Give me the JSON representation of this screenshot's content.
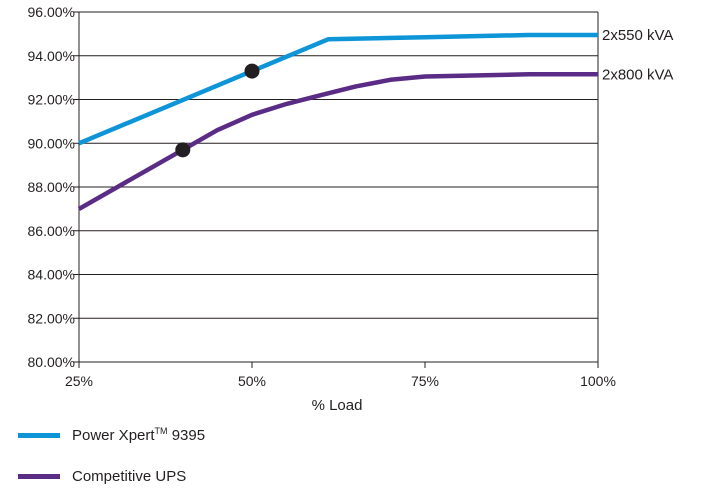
{
  "chart_data": {
    "type": "line",
    "xlabel": "% Load",
    "ylabel": "",
    "x_ticks": [
      "25%",
      "50%",
      "75%",
      "100%"
    ],
    "y_ticks": [
      "96.00%",
      "94.00%",
      "92.00%",
      "90.00%",
      "88.00%",
      "86.00%",
      "84.00%",
      "82.00%",
      "80.00%"
    ],
    "xlim": [
      25,
      100
    ],
    "ylim": [
      80,
      96
    ],
    "grid": "horizontal",
    "legend_position": "bottom-left",
    "series": [
      {
        "name": "Power Xpert 9395",
        "name_main": "Power Xpert",
        "name_tm": "TM",
        "name_suffix": " 9395",
        "color": "#0d95d8",
        "end_label": "2x550 kVA",
        "x": [
          25,
          50,
          61,
          75,
          90,
          100
        ],
        "y": [
          90.0,
          93.3,
          94.75,
          94.85,
          94.95,
          94.95
        ],
        "marker": {
          "x": 50,
          "y": 93.3
        }
      },
      {
        "name": "Competitive UPS",
        "color": "#5b2c86",
        "end_label": "2x800 kVA",
        "x": [
          25,
          40,
          45,
          50,
          55,
          60,
          65,
          70,
          75,
          90,
          100
        ],
        "y": [
          87.0,
          89.7,
          90.6,
          91.3,
          91.8,
          92.2,
          92.6,
          92.9,
          93.05,
          93.15,
          93.15
        ],
        "marker": {
          "x": 40,
          "y": 89.7
        }
      }
    ]
  }
}
